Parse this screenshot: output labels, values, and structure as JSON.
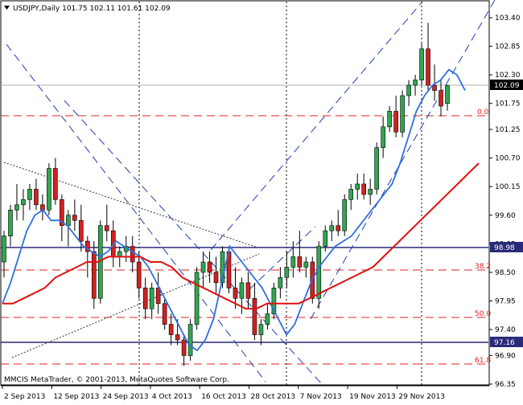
{
  "window": {
    "symbol_line": "USDJPY,Daily  101.75 102.11 101.61 102.09",
    "copyright": "MMCIS MetaTrader, © 2001-2013, MetaQuotes Software Corp.",
    "collapse_icon": "triangle-down-icon"
  },
  "colors": {
    "bull": "#2fa84f",
    "bear": "#d42020",
    "fast_ma": "#2f6fe0",
    "slow_ma": "#e01010",
    "trend_lines": "#1f3faa",
    "horizontal_levels": "#2a2a7a",
    "fib_levels": "#e02020",
    "current_price_box": "#000000"
  },
  "price_axis": {
    "ticks": [
      "103.40",
      "102.85",
      "102.30",
      "101.75",
      "101.25",
      "100.70",
      "100.15",
      "99.60",
      "99.05",
      "98.50",
      "97.95",
      "97.40",
      "96.90",
      "96.35"
    ],
    "tags": [
      {
        "value": "102.09",
        "price": 102.09
      },
      {
        "value": "98.98",
        "price": 98.98
      },
      {
        "value": "97.16",
        "price": 97.16
      }
    ]
  },
  "time_axis": {
    "ticks": [
      "2 Sep 2013",
      "12 Sep 2013",
      "24 Sep 2013",
      "4 Oct 2013",
      "16 Oct 2013",
      "28 Oct 2013",
      "7 Nov 2013",
      "19 Nov 2013",
      "29 Nov 2013"
    ]
  },
  "fib_labels": [
    {
      "text": "0.0",
      "price": 101.48
    },
    {
      "text": "38.2",
      "price": 98.67
    },
    {
      "text": "50.0",
      "price": 97.78
    },
    {
      "text": "61.8",
      "price": 96.72
    }
  ],
  "chart_data": {
    "type": "candlestick",
    "instrument": "USDJPY",
    "timeframe": "Daily",
    "last_bar": {
      "open": 101.75,
      "high": 102.11,
      "low": 101.61,
      "close": 102.09
    },
    "y_range": [
      96.35,
      103.45
    ],
    "candles": [
      [
        98.7,
        99.3,
        98.4,
        99.2
      ],
      [
        99.2,
        99.8,
        99.0,
        99.7
      ],
      [
        99.7,
        100.2,
        99.5,
        99.8
      ],
      [
        99.8,
        100.1,
        99.5,
        99.9
      ],
      [
        99.9,
        100.2,
        99.7,
        100.1
      ],
      [
        100.1,
        100.3,
        99.7,
        99.8
      ],
      [
        99.8,
        100.0,
        99.5,
        99.7
      ],
      [
        99.7,
        100.6,
        99.6,
        100.5
      ],
      [
        100.5,
        100.7,
        99.8,
        99.9
      ],
      [
        99.9,
        100.0,
        99.1,
        99.4
      ],
      [
        99.4,
        99.7,
        99.0,
        99.6
      ],
      [
        99.6,
        99.9,
        99.3,
        99.5
      ],
      [
        99.5,
        99.8,
        98.9,
        99.1
      ],
      [
        99.1,
        99.2,
        98.4,
        98.9
      ],
      [
        98.9,
        99.1,
        97.8,
        98.0
      ],
      [
        98.0,
        99.5,
        97.9,
        99.4
      ],
      [
        99.4,
        99.8,
        99.1,
        99.3
      ],
      [
        99.3,
        99.5,
        98.6,
        98.8
      ],
      [
        98.8,
        99.0,
        98.6,
        98.9
      ],
      [
        98.9,
        99.2,
        98.7,
        99.0
      ],
      [
        99.0,
        99.2,
        98.5,
        98.7
      ],
      [
        98.7,
        98.9,
        98.0,
        98.2
      ],
      [
        98.2,
        98.4,
        97.6,
        97.8
      ],
      [
        97.8,
        98.3,
        97.6,
        98.2
      ],
      [
        98.2,
        98.5,
        97.7,
        97.9
      ],
      [
        97.9,
        98.0,
        97.4,
        97.5
      ],
      [
        97.5,
        97.7,
        97.1,
        97.3
      ],
      [
        97.3,
        97.6,
        97.1,
        97.2
      ],
      [
        97.2,
        97.3,
        96.7,
        96.9
      ],
      [
        96.9,
        97.6,
        96.8,
        97.5
      ],
      [
        97.5,
        98.6,
        97.4,
        98.5
      ],
      [
        98.5,
        98.9,
        98.2,
        98.7
      ],
      [
        98.7,
        98.9,
        98.3,
        98.5
      ],
      [
        98.5,
        98.8,
        98.1,
        98.3
      ],
      [
        98.3,
        99.0,
        98.2,
        98.9
      ],
      [
        98.9,
        99.0,
        98.1,
        98.2
      ],
      [
        98.2,
        98.6,
        97.8,
        98.0
      ],
      [
        98.0,
        98.4,
        97.7,
        98.3
      ],
      [
        98.3,
        98.5,
        97.8,
        98.0
      ],
      [
        98.0,
        98.3,
        97.2,
        97.3
      ],
      [
        97.3,
        97.6,
        97.1,
        97.5
      ],
      [
        97.5,
        97.9,
        97.4,
        97.7
      ],
      [
        97.7,
        98.3,
        97.6,
        98.2
      ],
      [
        98.2,
        98.6,
        98.0,
        98.4
      ],
      [
        98.4,
        98.9,
        98.2,
        98.6
      ],
      [
        98.6,
        99.1,
        98.4,
        98.8
      ],
      [
        98.8,
        99.3,
        98.5,
        98.6
      ],
      [
        98.6,
        98.8,
        98.4,
        98.7
      ],
      [
        98.7,
        98.8,
        97.9,
        98.0
      ],
      [
        98.0,
        99.1,
        97.8,
        99.0
      ],
      [
        99.0,
        99.4,
        98.9,
        99.3
      ],
      [
        99.3,
        99.5,
        99.1,
        99.4
      ],
      [
        99.4,
        99.7,
        99.2,
        99.3
      ],
      [
        99.3,
        100.0,
        99.2,
        99.9
      ],
      [
        99.9,
        100.2,
        99.7,
        100.1
      ],
      [
        100.1,
        100.4,
        99.9,
        100.2
      ],
      [
        100.2,
        100.4,
        99.9,
        100.0
      ],
      [
        100.0,
        100.3,
        99.8,
        100.1
      ],
      [
        100.1,
        101.0,
        100.0,
        100.9
      ],
      [
        100.9,
        101.5,
        100.7,
        101.3
      ],
      [
        101.3,
        101.7,
        101.2,
        101.6
      ],
      [
        101.6,
        101.9,
        101.1,
        101.2
      ],
      [
        101.2,
        102.0,
        101.1,
        101.9
      ],
      [
        101.9,
        102.2,
        101.7,
        102.1
      ],
      [
        102.1,
        102.3,
        101.9,
        102.2
      ],
      [
        102.2,
        102.9,
        102.1,
        102.8
      ],
      [
        102.8,
        103.3,
        102.0,
        102.1
      ],
      [
        102.1,
        102.5,
        101.8,
        102.0
      ],
      [
        102.0,
        102.2,
        101.5,
        101.7
      ],
      [
        101.75,
        102.11,
        101.61,
        102.09
      ]
    ],
    "series": [
      {
        "name": "",
        "role": "fast moving average",
        "values": [
          97.9,
          98.3,
          98.8,
          99.3,
          99.6,
          99.7,
          99.5,
          99.5,
          99.4,
          99.2,
          99.0,
          98.9,
          98.8,
          98.9,
          99.1,
          99.0,
          98.9,
          98.8,
          98.6,
          98.3,
          98.0,
          97.7,
          97.4,
          97.1,
          97.0,
          97.2,
          97.6,
          98.3,
          99.0,
          98.8,
          98.6,
          98.4,
          98.2,
          97.9,
          97.6,
          97.3,
          97.5,
          97.9,
          98.3,
          98.6,
          98.8,
          99.0,
          99.1,
          99.2,
          99.4,
          99.6,
          99.8,
          100.0,
          100.2,
          100.6,
          101.1,
          101.6,
          101.9,
          102.1,
          102.2,
          102.4,
          102.3,
          102.0
        ]
      },
      {
        "name": "",
        "role": "slow moving average",
        "values": [
          97.9,
          97.9,
          98.0,
          98.1,
          98.2,
          98.4,
          98.5,
          98.6,
          98.7,
          98.7,
          98.8,
          98.8,
          98.8,
          98.8,
          98.7,
          98.7,
          98.6,
          98.4,
          98.3,
          98.2,
          98.1,
          98.0,
          97.9,
          97.8,
          97.8,
          97.9,
          97.9,
          97.9,
          97.9,
          98.0,
          98.1,
          98.2,
          98.3,
          98.4,
          98.5,
          98.6,
          98.8,
          99.0,
          99.2,
          99.4,
          99.6,
          99.8,
          100.0,
          100.2,
          100.4,
          100.6
        ]
      }
    ],
    "horizontal_levels": [
      98.98,
      97.16
    ],
    "fibonacci_levels": [
      {
        "label": "0.0",
        "price": 101.48
      },
      {
        "label": "38.2",
        "price": 98.67
      },
      {
        "label": "50.0",
        "price": 97.78
      },
      {
        "label": "61.8",
        "price": 96.72
      }
    ]
  }
}
